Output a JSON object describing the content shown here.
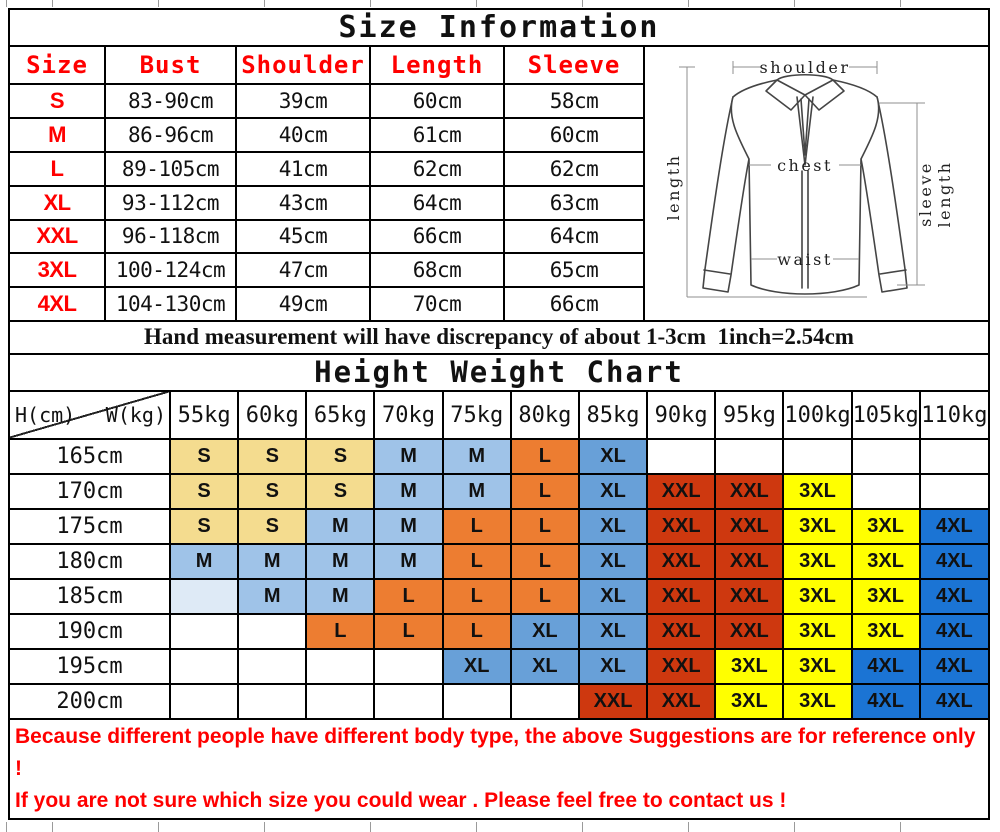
{
  "title": "Size Information",
  "size_table": {
    "headers": [
      "Size",
      "Bust",
      "Shoulder",
      "Length",
      "Sleeve"
    ],
    "rows": [
      [
        "S",
        "83-90cm",
        "39cm",
        "60cm",
        "58cm"
      ],
      [
        "M",
        "86-96cm",
        "40cm",
        "61cm",
        "60cm"
      ],
      [
        "L",
        "89-105cm",
        "41cm",
        "62cm",
        "62cm"
      ],
      [
        "XL",
        "93-112cm",
        "43cm",
        "64cm",
        "63cm"
      ],
      [
        "XXL",
        "96-118cm",
        "45cm",
        "66cm",
        "64cm"
      ],
      [
        "3XL",
        "100-124cm",
        "47cm",
        "68cm",
        "65cm"
      ],
      [
        "4XL",
        "104-130cm",
        "49cm",
        "70cm",
        "66cm"
      ]
    ]
  },
  "shirt": {
    "labels": {
      "shoulder": "shoulder",
      "chest": "chest",
      "waist": "waist",
      "length": "length",
      "sleeve_line1": "sleeve",
      "sleeve_line2": "length"
    }
  },
  "note": "Hand measurement will have discrepancy of about 1-3cm  1inch=2.54cm",
  "weight_chart": {
    "title": "Height Weight Chart",
    "corner_height_label": "H(cm)",
    "corner_weight_label": "W(kg)",
    "weight_headers": [
      "55kg",
      "60kg",
      "65kg",
      "70kg",
      "75kg",
      "80kg",
      "85kg",
      "90kg",
      "95kg",
      "100kg",
      "105kg",
      "110kg"
    ],
    "rows": [
      {
        "height": "165cm",
        "cells": [
          [
            "S",
            "s"
          ],
          [
            "S",
            "s"
          ],
          [
            "S",
            "s"
          ],
          [
            "M",
            "m"
          ],
          [
            "M",
            "m"
          ],
          [
            "L",
            "l"
          ],
          [
            "XL",
            "xl"
          ],
          [
            "",
            ""
          ],
          [
            "",
            ""
          ],
          [
            "",
            ""
          ],
          [
            "",
            ""
          ],
          [
            "",
            ""
          ]
        ]
      },
      {
        "height": "170cm",
        "cells": [
          [
            "S",
            "s"
          ],
          [
            "S",
            "s"
          ],
          [
            "S",
            "s"
          ],
          [
            "M",
            "m"
          ],
          [
            "M",
            "m"
          ],
          [
            "L",
            "l"
          ],
          [
            "XL",
            "xl"
          ],
          [
            "XXL",
            "xxl"
          ],
          [
            "XXL",
            "xxl"
          ],
          [
            "3XL",
            "x3l"
          ],
          [
            "",
            ""
          ],
          [
            "",
            ""
          ]
        ]
      },
      {
        "height": "175cm",
        "cells": [
          [
            "S",
            "s"
          ],
          [
            "S",
            "s"
          ],
          [
            "M",
            "m"
          ],
          [
            "M",
            "m"
          ],
          [
            "L",
            "l"
          ],
          [
            "L",
            "l"
          ],
          [
            "XL",
            "xl"
          ],
          [
            "XXL",
            "xxl"
          ],
          [
            "XXL",
            "xxl"
          ],
          [
            "3XL",
            "x3l"
          ],
          [
            "3XL",
            "x3l"
          ],
          [
            "4XL",
            "x4l"
          ]
        ]
      },
      {
        "height": "180cm",
        "cells": [
          [
            "M",
            "m"
          ],
          [
            "M",
            "m"
          ],
          [
            "M",
            "m"
          ],
          [
            "M",
            "m"
          ],
          [
            "L",
            "l"
          ],
          [
            "L",
            "l"
          ],
          [
            "XL",
            "xl"
          ],
          [
            "XXL",
            "xxl"
          ],
          [
            "XXL",
            "xxl"
          ],
          [
            "3XL",
            "x3l"
          ],
          [
            "3XL",
            "x3l"
          ],
          [
            "4XL",
            "x4l"
          ]
        ]
      },
      {
        "height": "185cm",
        "cells": [
          [
            "",
            "pale"
          ],
          [
            "M",
            "m"
          ],
          [
            "M",
            "m"
          ],
          [
            "L",
            "l"
          ],
          [
            "L",
            "l"
          ],
          [
            "L",
            "l"
          ],
          [
            "XL",
            "xl"
          ],
          [
            "XXL",
            "xxl"
          ],
          [
            "XXL",
            "xxl"
          ],
          [
            "3XL",
            "x3l"
          ],
          [
            "3XL",
            "x3l"
          ],
          [
            "4XL",
            "x4l"
          ]
        ]
      },
      {
        "height": "190cm",
        "cells": [
          [
            "",
            ""
          ],
          [
            "",
            ""
          ],
          [
            "L",
            "l"
          ],
          [
            "L",
            "l"
          ],
          [
            "L",
            "l"
          ],
          [
            "XL",
            "xl"
          ],
          [
            "XL",
            "xl"
          ],
          [
            "XXL",
            "xxl"
          ],
          [
            "XXL",
            "xxl"
          ],
          [
            "3XL",
            "x3l"
          ],
          [
            "3XL",
            "x3l"
          ],
          [
            "4XL",
            "x4l"
          ]
        ]
      },
      {
        "height": "195cm",
        "cells": [
          [
            "",
            ""
          ],
          [
            "",
            ""
          ],
          [
            "",
            ""
          ],
          [
            "",
            ""
          ],
          [
            "XL",
            "xl"
          ],
          [
            "XL",
            "xl"
          ],
          [
            "XL",
            "xl"
          ],
          [
            "XXL",
            "xxl"
          ],
          [
            "3XL",
            "x3l"
          ],
          [
            "3XL",
            "x3l"
          ],
          [
            "4XL",
            "x4l"
          ],
          [
            "4XL",
            "x4l"
          ]
        ]
      },
      {
        "height": "200cm",
        "cells": [
          [
            "",
            ""
          ],
          [
            "",
            ""
          ],
          [
            "",
            ""
          ],
          [
            "",
            ""
          ],
          [
            "",
            ""
          ],
          [
            "",
            ""
          ],
          [
            "XXL",
            "xxl"
          ],
          [
            "XXL",
            "xxl"
          ],
          [
            "3XL",
            "x3l"
          ],
          [
            "3XL",
            "x3l"
          ],
          [
            "4XL",
            "x4l"
          ],
          [
            "4XL",
            "x4l"
          ]
        ]
      }
    ]
  },
  "disclaimer": {
    "line1": "Because different people have different body type, the above Suggestions are for reference only !",
    "line2": "If you are not sure which size you could wear . Please feel free to contact us !"
  },
  "colors": {
    "s": "#F4DC8F",
    "m": "#9FC3E8",
    "l": "#ED7D31",
    "xl": "#68A0D8",
    "xxl": "#CE380F",
    "x3l": "#FFFF00",
    "x4l": "#1B74D4",
    "pale": "#DEEAF6",
    "header_red": "#FF0000",
    "disclaimer_red": "#FF0000"
  }
}
